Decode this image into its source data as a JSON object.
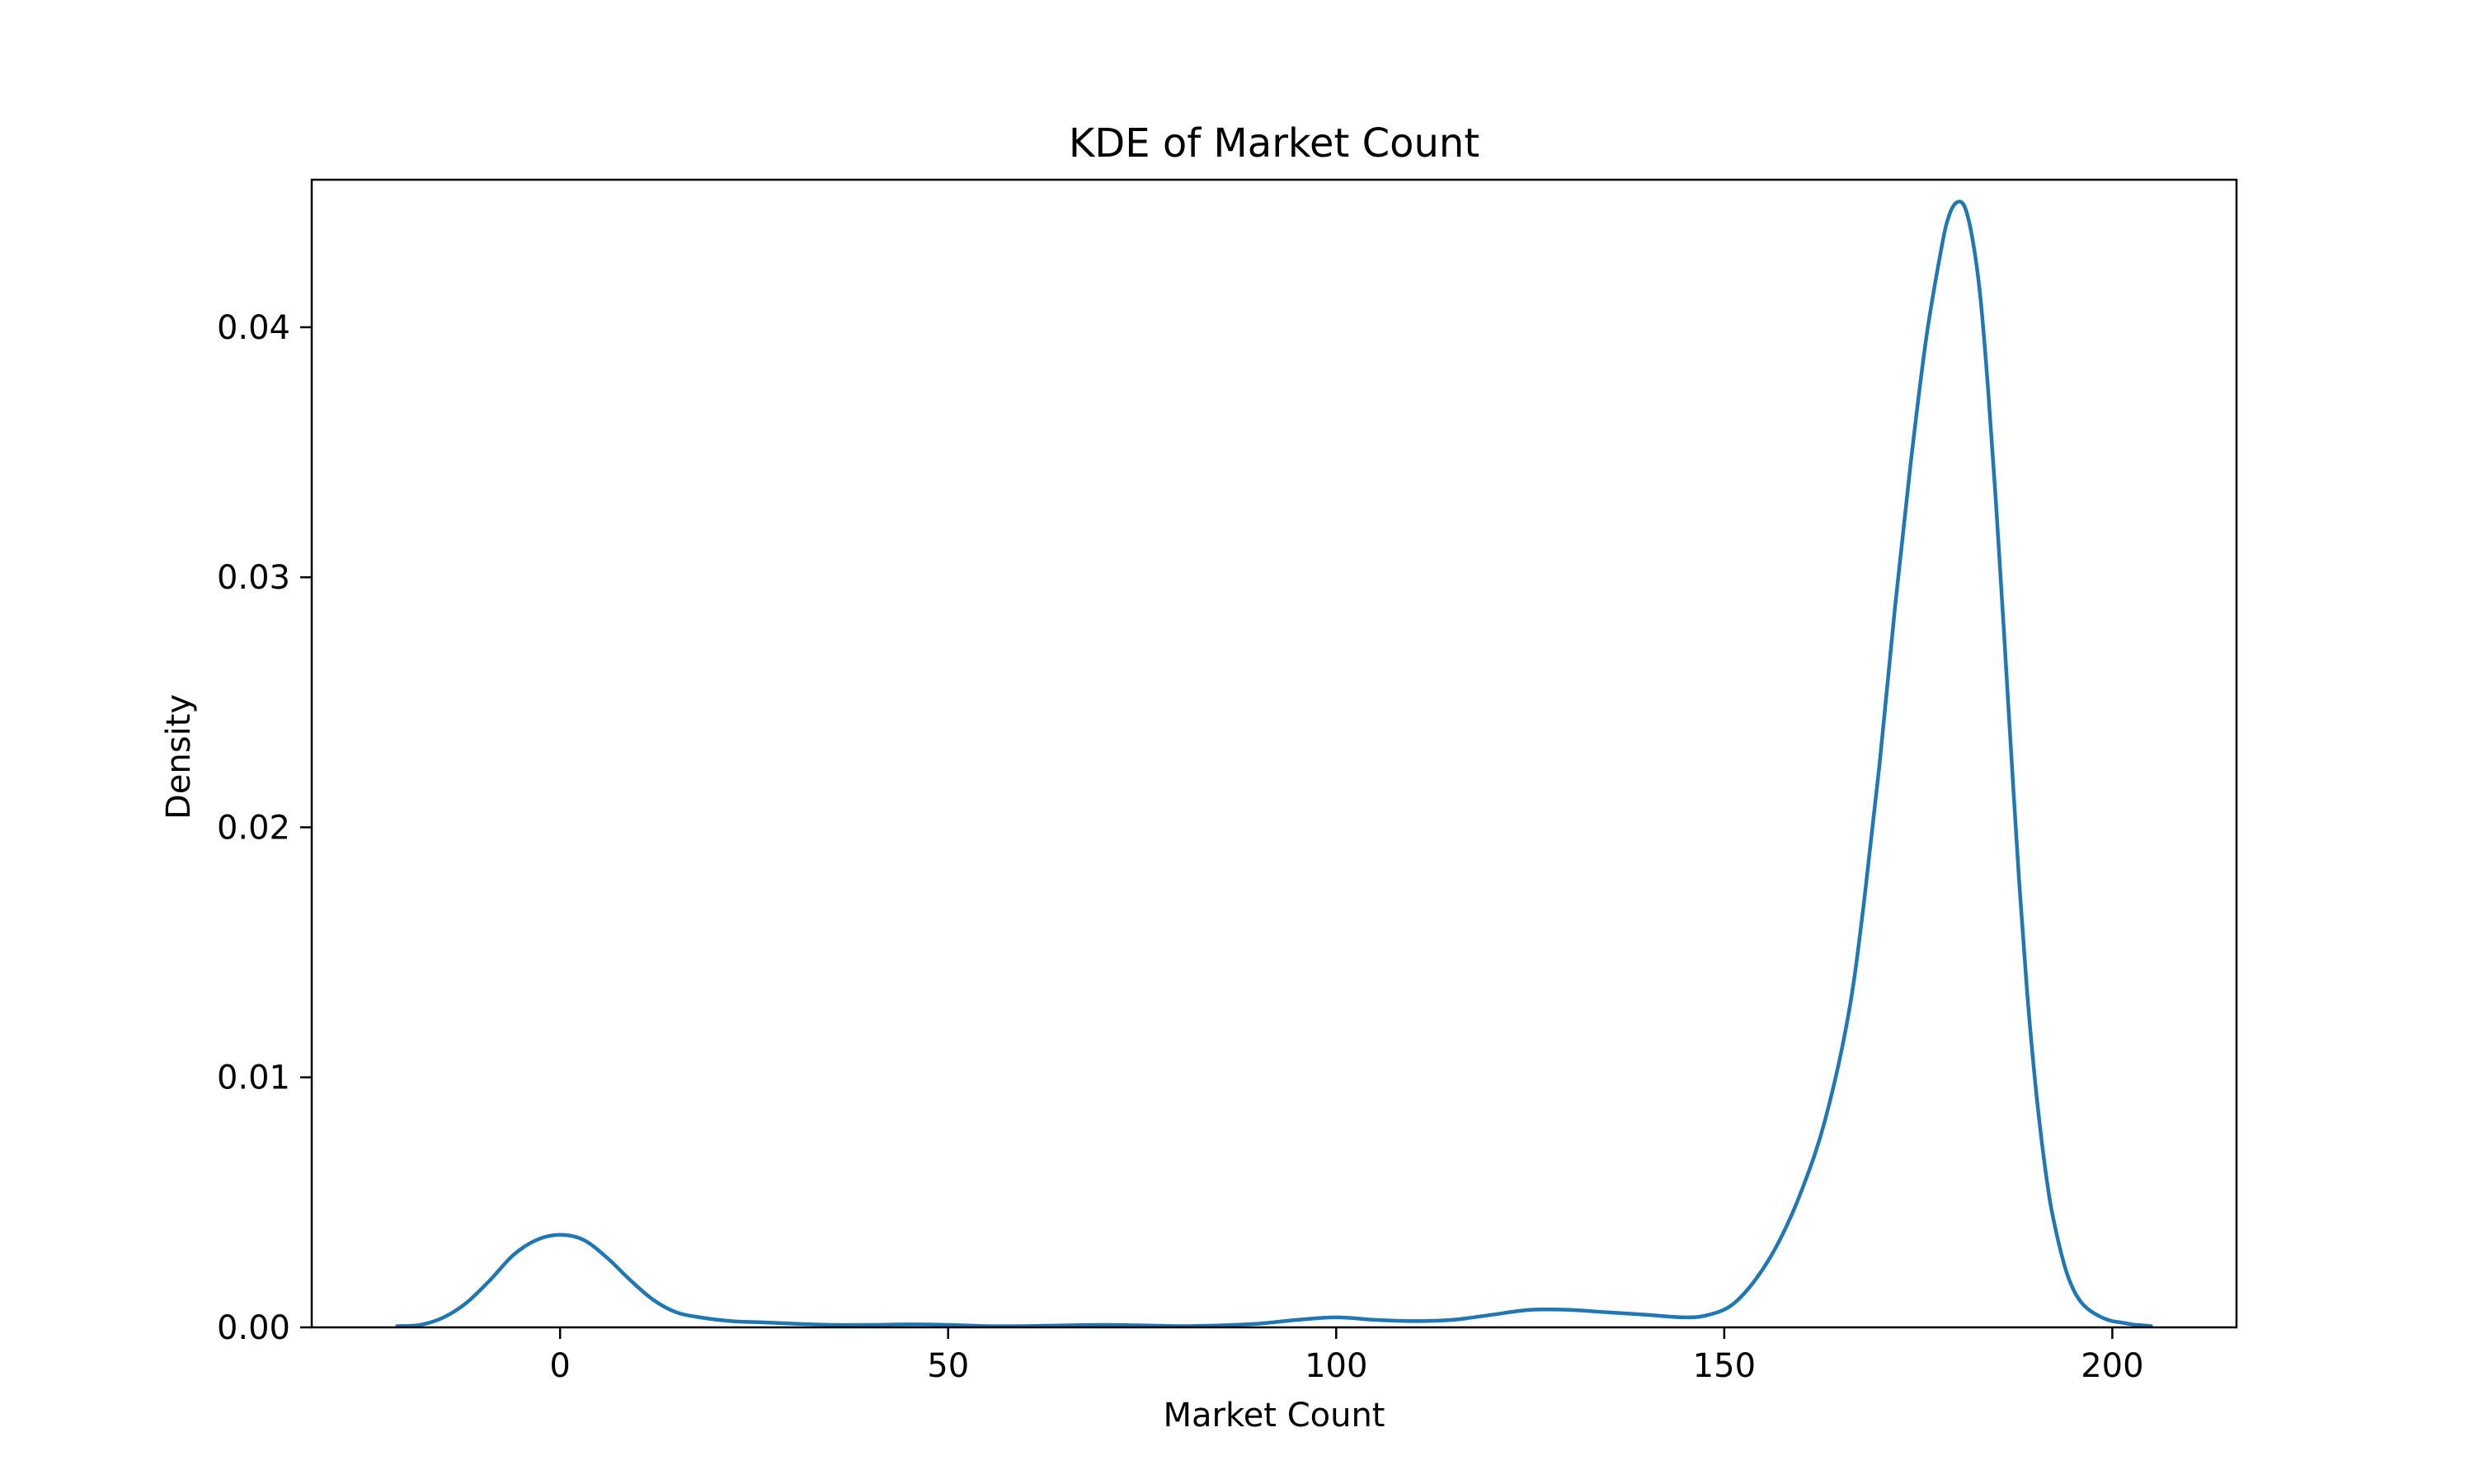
{
  "chart_data": {
    "type": "line",
    "title": "KDE of Market Count",
    "xlabel": "Market Count",
    "ylabel": "Density",
    "xlim": [
      -32,
      216
    ],
    "ylim": [
      0,
      0.0459
    ],
    "x_ticks": [
      0,
      50,
      100,
      150,
      200
    ],
    "x_tick_labels": [
      "0",
      "50",
      "100",
      "150",
      "200"
    ],
    "y_ticks": [
      0,
      0.01,
      0.02,
      0.03,
      0.04
    ],
    "y_tick_labels": [
      "0.00",
      "0.01",
      "0.02",
      "0.03",
      "0.04"
    ],
    "grid": false,
    "colors": {
      "line": "#1f77b4",
      "axes": "#000000",
      "background": "#ffffff"
    },
    "series": [
      {
        "x": [
          -21,
          -18,
          -15,
          -12,
          -9,
          -6,
          -3,
          0,
          3,
          6,
          9,
          12,
          15,
          18,
          22,
          26,
          30,
          35,
          40,
          45,
          50,
          55,
          60,
          65,
          70,
          75,
          80,
          85,
          90,
          95,
          100,
          105,
          110,
          115,
          120,
          125,
          130,
          135,
          140,
          145,
          148,
          151,
          154,
          157,
          160,
          163,
          166,
          168,
          170,
          172,
          174,
          176,
          178,
          179,
          180,
          181,
          182,
          183,
          184,
          185,
          186,
          187,
          188,
          189,
          190,
          191,
          192,
          193,
          194,
          195,
          196,
          197,
          198,
          199,
          200,
          201,
          202,
          203,
          204,
          205
        ],
        "y": [
          5e-05,
          0.0001,
          0.0004,
          0.001,
          0.0019,
          0.0029,
          0.0035,
          0.0037,
          0.0035,
          0.0028,
          0.0019,
          0.0011,
          0.0006,
          0.0004,
          0.00025,
          0.0002,
          0.00015,
          0.0001,
          0.0001,
          0.00012,
          0.0001,
          5e-05,
          5e-05,
          8e-05,
          0.0001,
          8e-05,
          5e-05,
          8e-05,
          0.00015,
          0.0003,
          0.0004,
          0.0003,
          0.00025,
          0.0003,
          0.0005,
          0.0007,
          0.0007,
          0.0006,
          0.0005,
          0.0004,
          0.0005,
          0.0009,
          0.0019,
          0.0034,
          0.0055,
          0.0083,
          0.0125,
          0.017,
          0.0225,
          0.0288,
          0.0345,
          0.0395,
          0.0432,
          0.0445,
          0.045,
          0.0448,
          0.0435,
          0.0412,
          0.0375,
          0.033,
          0.028,
          0.0228,
          0.0178,
          0.0135,
          0.01,
          0.0072,
          0.005,
          0.0035,
          0.0023,
          0.0015,
          0.001,
          0.0007,
          0.0005,
          0.00035,
          0.00025,
          0.0002,
          0.00015,
          0.0001,
          8e-05,
          5e-05
        ]
      }
    ]
  }
}
